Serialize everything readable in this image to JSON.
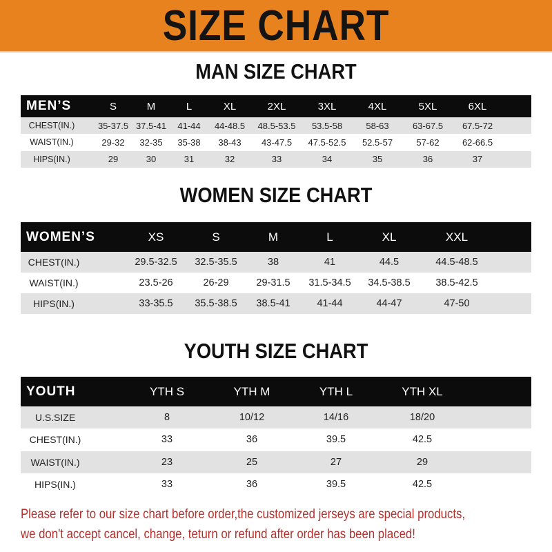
{
  "banner": {
    "title": "SIZE CHART",
    "color": "#e8821e"
  },
  "men": {
    "title": "MAN SIZE CHART",
    "header": "MEN’S",
    "sizes": [
      "S",
      "M",
      "L",
      "XL",
      "2XL",
      "3XL",
      "4XL",
      "5XL",
      "6XL"
    ],
    "rows": [
      {
        "label": "CHEST(IN.)",
        "values": [
          "35-37.5",
          "37.5-41",
          "41-44",
          "44-48.5",
          "48.5-53.5",
          "53.5-58",
          "58-63",
          "63-67.5",
          "67.5-72"
        ]
      },
      {
        "label": "WAIST(IN.)",
        "values": [
          "29-32",
          "32-35",
          "35-38",
          "38-43",
          "43-47.5",
          "47.5-52.5",
          "52.5-57",
          "57-62",
          "62-66.5"
        ]
      },
      {
        "label": "HIPS(IN.)",
        "values": [
          "29",
          "30",
          "31",
          "32",
          "33",
          "34",
          "35",
          "36",
          "37"
        ]
      }
    ]
  },
  "women": {
    "title": "WOMEN SIZE CHART",
    "header": "WOMEN’S",
    "sizes": [
      "XS",
      "S",
      "M",
      "L",
      "XL",
      "XXL"
    ],
    "rows": [
      {
        "label": "CHEST(IN.)",
        "values": [
          "29.5-32.5",
          "32.5-35.5",
          "38",
          "41",
          "44.5",
          "44.5-48.5"
        ]
      },
      {
        "label": "WAIST(IN.)",
        "values": [
          "23.5-26",
          "26-29",
          "29-31.5",
          "31.5-34.5",
          "34.5-38.5",
          "38.5-42.5"
        ]
      },
      {
        "label": "HIPS(IN.)",
        "values": [
          "33-35.5",
          "35.5-38.5",
          "38.5-41",
          "41-44",
          "44-47",
          "47-50"
        ]
      }
    ]
  },
  "youth": {
    "title": "YOUTH SIZE CHART",
    "header": "YOUTH",
    "sizes": [
      "YTH S",
      "YTH M",
      "YTH L",
      "YTH XL"
    ],
    "rows": [
      {
        "label": "U.S.SIZE",
        "values": [
          "8",
          "10/12",
          "14/16",
          "18/20"
        ]
      },
      {
        "label": "CHEST(IN.)",
        "values": [
          "33",
          "36",
          "39.5",
          "42.5"
        ]
      },
      {
        "label": "WAIST(IN.)",
        "values": [
          "23",
          "25",
          "27",
          "29"
        ]
      },
      {
        "label": "HIPS(IN.)",
        "values": [
          "33",
          "36",
          "39.5",
          "42.5"
        ]
      }
    ]
  },
  "footer": {
    "line1": "Please refer to our size chart before order,the customized jerseys are special products,",
    "line2": "we don't accept cancel, change, teturn or refund after order has been placed!",
    "color": "#b3302c"
  }
}
